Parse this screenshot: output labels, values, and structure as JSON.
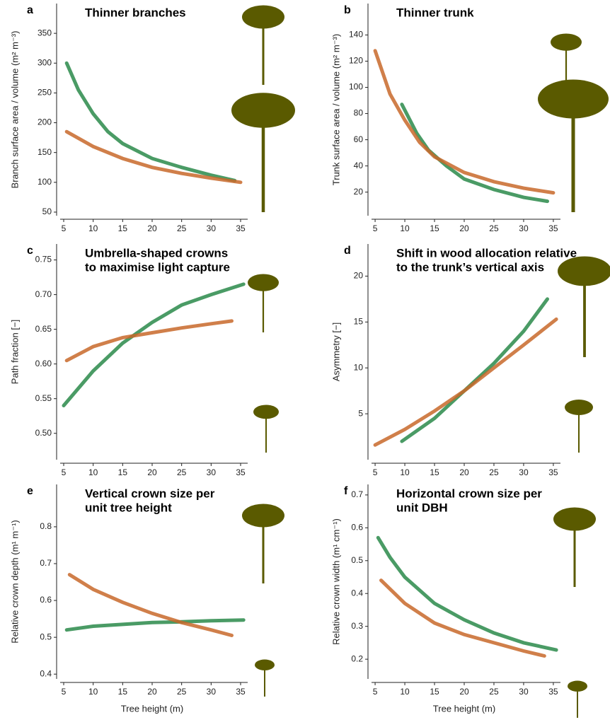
{
  "chart_data": [
    {
      "type": "line",
      "label": "a",
      "title": [
        "Thinner branches"
      ],
      "y_label": "Branch surface area / volume (m² m⁻³)",
      "xlim": [
        3.8,
        36.2
      ],
      "xticks": [
        5,
        10,
        15,
        20,
        25,
        30,
        35
      ],
      "ylim": [
        44,
        400
      ],
      "yticks": [
        50,
        100,
        150,
        200,
        250,
        300,
        350
      ],
      "series": [
        {
          "color": "#2a8a4a",
          "x": [
            5.5,
            7.5,
            10,
            12.5,
            15,
            20,
            25,
            30,
            34
          ],
          "values": [
            300,
            255,
            215,
            185,
            165,
            140,
            125,
            112,
            103
          ]
        },
        {
          "color": "#c8692a",
          "x": [
            5.5,
            10,
            15,
            20,
            25,
            30,
            35
          ],
          "values": [
            185,
            160,
            140,
            125,
            115,
            107,
            100
          ]
        }
      ]
    },
    {
      "type": "line",
      "label": "b",
      "title": [
        "Thinner trunk"
      ],
      "y_label": "Trunk surface area / volume (m² m⁻³)",
      "xlim": [
        3.8,
        36.2
      ],
      "xticks": [
        5,
        10,
        15,
        20,
        25,
        30,
        35
      ],
      "ylim": [
        2,
        164
      ],
      "yticks": [
        20,
        40,
        60,
        80,
        100,
        120,
        140
      ],
      "series": [
        {
          "color": "#2a8a4a",
          "x": [
            9.5,
            12,
            14,
            17,
            20,
            25,
            30,
            34
          ],
          "values": [
            87,
            65,
            52,
            40,
            30,
            22,
            16,
            13
          ]
        },
        {
          "color": "#c8692a",
          "x": [
            5,
            7.5,
            10,
            12.5,
            15,
            20,
            25,
            30,
            35
          ],
          "values": [
            128,
            95,
            75,
            58,
            47,
            35,
            28,
            23,
            19.5
          ]
        }
      ]
    },
    {
      "type": "line",
      "label": "c",
      "title": [
        "Umbrella-shaped crowns",
        "to maximise light capture"
      ],
      "y_label": "Path fraction [−]",
      "xlim": [
        3.8,
        36.2
      ],
      "xticks": [
        5,
        10,
        15,
        20,
        25,
        30,
        35
      ],
      "ylim": [
        0.462,
        0.773
      ],
      "yticks": [
        {
          "value": 0.5,
          "label": "0.50"
        },
        0.55,
        {
          "value": 0.6,
          "label": "0.60"
        },
        0.65,
        {
          "value": 0.7,
          "label": "0.70"
        },
        0.75
      ],
      "series": [
        {
          "color": "#2a8a4a",
          "x": [
            5,
            10,
            15,
            20,
            25,
            30,
            35.5
          ],
          "values": [
            0.54,
            0.59,
            0.63,
            0.66,
            0.685,
            0.7,
            0.715
          ]
        },
        {
          "color": "#c8692a",
          "x": [
            5.5,
            10,
            15,
            20,
            25,
            30,
            33.5
          ],
          "values": [
            0.605,
            0.625,
            0.638,
            0.645,
            0.652,
            0.658,
            0.662
          ]
        }
      ]
    },
    {
      "type": "line",
      "label": "d",
      "title": [
        "Shift in wood allocation relative",
        "to the trunk’s vertical axis"
      ],
      "y_label": "Asymmetry [−]",
      "xlim": [
        3.8,
        36.2
      ],
      "xticks": [
        5,
        10,
        15,
        20,
        25,
        30,
        35
      ],
      "ylim": [
        0,
        23.5
      ],
      "yticks": [
        5,
        10,
        15,
        20
      ],
      "series": [
        {
          "color": "#2a8a4a",
          "x": [
            9.5,
            15,
            20,
            25,
            30,
            34
          ],
          "values": [
            2,
            4.5,
            7.5,
            10.5,
            14,
            17.5
          ]
        },
        {
          "color": "#c8692a",
          "x": [
            5,
            10,
            15,
            20,
            25,
            30,
            35.5
          ],
          "values": [
            1.6,
            3.3,
            5.3,
            7.5,
            10,
            12.5,
            15.3
          ]
        }
      ]
    },
    {
      "type": "line",
      "label": "e",
      "title": [
        "Vertical crown size per",
        "unit tree height"
      ],
      "y_label": "Relative crown depth (m¹ m⁻¹)",
      "x_label": "Tree height (m)",
      "xlim": [
        3.8,
        36.2
      ],
      "xticks": [
        5,
        10,
        15,
        20,
        25,
        30,
        35
      ],
      "ylim": [
        0.387,
        0.915
      ],
      "yticks": [
        0.4,
        0.5,
        0.6,
        0.7,
        0.8
      ],
      "series": [
        {
          "color": "#2a8a4a",
          "x": [
            5.5,
            10,
            15,
            20,
            25,
            30,
            35.5
          ],
          "values": [
            0.52,
            0.53,
            0.535,
            0.54,
            0.542,
            0.545,
            0.547
          ]
        },
        {
          "color": "#c8692a",
          "x": [
            6,
            10,
            15,
            20,
            25,
            30,
            33.5
          ],
          "values": [
            0.67,
            0.63,
            0.595,
            0.565,
            0.54,
            0.52,
            0.505
          ]
        }
      ]
    },
    {
      "type": "line",
      "label": "f",
      "title": [
        "Horizontal crown size per",
        "unit DBH"
      ],
      "y_label": "Relative crown width (m¹ cm⁻¹)",
      "x_label": "Tree height (m)",
      "xlim": [
        3.8,
        36.2
      ],
      "xticks": [
        5,
        10,
        15,
        20,
        25,
        30,
        35
      ],
      "ylim": [
        0.14,
        0.732
      ],
      "yticks": [
        0.2,
        0.3,
        0.4,
        0.5,
        0.6,
        0.7
      ],
      "series": [
        {
          "color": "#2a8a4a",
          "x": [
            5.5,
            7.5,
            10,
            15,
            20,
            25,
            30,
            35.5
          ],
          "values": [
            0.57,
            0.51,
            0.45,
            0.37,
            0.32,
            0.28,
            0.25,
            0.228
          ]
        },
        {
          "color": "#c8692a",
          "x": [
            6,
            10,
            15,
            20,
            25,
            30,
            33.5
          ],
          "values": [
            0.44,
            0.37,
            0.31,
            0.275,
            0.25,
            0.225,
            0.21
          ]
        }
      ]
    }
  ]
}
